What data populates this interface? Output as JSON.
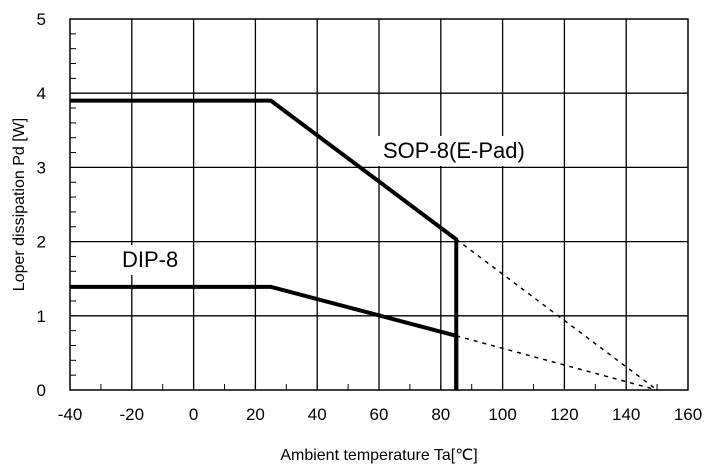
{
  "chart_data": {
    "type": "line",
    "title": "",
    "xlabel": "Ambient temperature Ta[℃]",
    "ylabel": "Loper dissipation Pd [W]",
    "xlim": [
      -40,
      160
    ],
    "ylim": [
      0,
      5
    ],
    "x_ticks": [
      "-40",
      "-20",
      "0",
      "20",
      "40",
      "60",
      "80",
      "100",
      "120",
      "140",
      "160"
    ],
    "y_ticks": [
      "0",
      "1",
      "2",
      "3",
      "4",
      "5"
    ],
    "grid": true,
    "series": [
      {
        "name": "SOP-8(E-Pad)",
        "points": [
          [
            -40,
            3.9
          ],
          [
            25,
            3.9
          ],
          [
            85,
            2.03
          ],
          [
            85,
            0
          ]
        ],
        "extrapolation": [
          [
            85,
            2.03
          ],
          [
            150,
            0
          ]
        ]
      },
      {
        "name": "DIP-8",
        "points": [
          [
            -40,
            1.39
          ],
          [
            25,
            1.39
          ],
          [
            85,
            0.73
          ],
          [
            85,
            0
          ]
        ],
        "extrapolation": [
          [
            85,
            0.73
          ],
          [
            150,
            0
          ]
        ]
      }
    ]
  }
}
